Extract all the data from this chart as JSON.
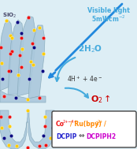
{
  "bg_color": "#ddeef5",
  "sio2_label": "SiO$_2$",
  "visible_light_label1": "Visible light",
  "visible_light_label2": "5mWcm$^{-2}$",
  "water_label": "2H$_2$O",
  "proton_label": "4H$^+$ + 4e$^-$",
  "oxygen_label": "O$_2$",
  "dot_red": "#ee1111",
  "dot_yellow": "#ffcc00",
  "dot_blue": "#000080",
  "arrow_color": "#44aadd",
  "wave_color": "#2288dd",
  "silica_color": "#aac8dc",
  "silica_edge": "#88aabb",
  "text_color_light": "#44aadd",
  "text_color_dark": "#333333",
  "legend_co_color": "#ee1111",
  "legend_ru_color": "#ff8800",
  "legend_dcpip_color": "#2222cc",
  "legend_dcpiph2_color": "#cc00cc"
}
